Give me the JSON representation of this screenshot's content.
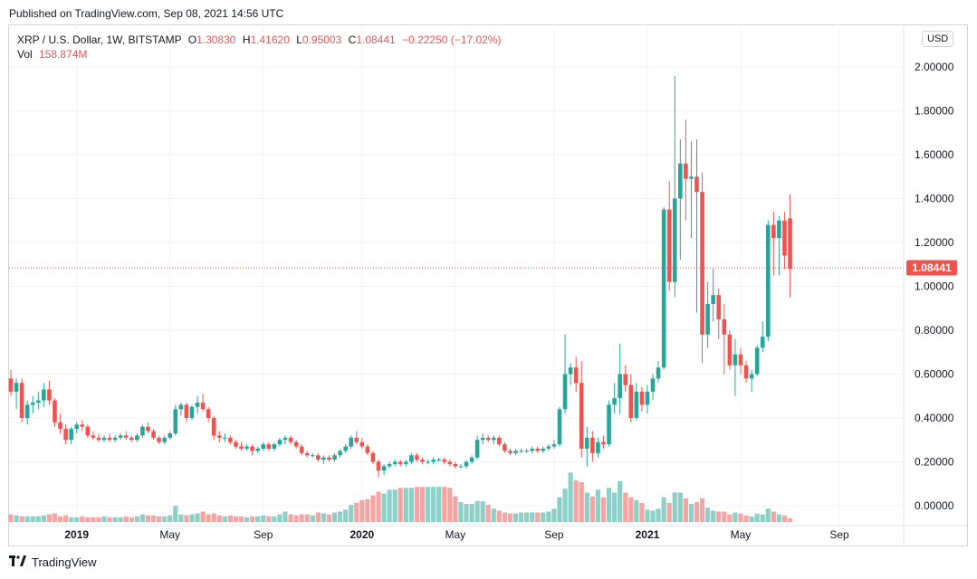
{
  "published": "Published on TradingView.com, Sep 08, 2021 14:56 UTC",
  "legend": {
    "symbol": "XRP / U.S. Dollar, 1W, BITSTAMP",
    "o_label": "O",
    "o": "1.30830",
    "h_label": "H",
    "h": "1.41620",
    "l_label": "L",
    "l": "0.95003",
    "c_label": "C",
    "c": "1.08441",
    "change": "−0.22250 (−17.02%)",
    "vol_label": "Vol",
    "vol": "158.874M"
  },
  "currency_button": "USD",
  "footer": {
    "brand": "TradingView"
  },
  "colors": {
    "up": "#26a69a",
    "down": "#ef5350",
    "vol_up": "#8ecfc7",
    "vol_down": "#f3a6a4",
    "last_price_bg": "#ef5350"
  },
  "chart_data": {
    "type": "candlestick",
    "title": "XRP / U.S. Dollar, 1W, BITSTAMP",
    "interval": "1W",
    "ylim": [
      -0.03,
      2.08
    ],
    "y_ticks": [
      "2.00000",
      "1.80000",
      "1.60000",
      "1.40000",
      "1.20000",
      "1.00000",
      "0.80000",
      "0.60000",
      "0.40000",
      "0.20000",
      "0.00000"
    ],
    "x_ticks": [
      {
        "label": "2019",
        "index": 12,
        "year": true
      },
      {
        "label": "May",
        "index": 29,
        "year": false
      },
      {
        "label": "Sep",
        "index": 46,
        "year": false
      },
      {
        "label": "2020",
        "index": 64,
        "year": true
      },
      {
        "label": "May",
        "index": 81,
        "year": false
      },
      {
        "label": "Sep",
        "index": 99,
        "year": false
      },
      {
        "label": "2021",
        "index": 116,
        "year": true
      },
      {
        "label": "May",
        "index": 133,
        "year": false
      },
      {
        "label": "Sep",
        "index": 151,
        "year": false
      }
    ],
    "last_price": "1.08441",
    "last_price_value": 1.08441,
    "volume_scale_max": 1.0,
    "ohlc": [
      [
        0.58,
        0.62,
        0.5,
        0.52
      ],
      [
        0.52,
        0.58,
        0.44,
        0.56
      ],
      [
        0.56,
        0.58,
        0.38,
        0.4
      ],
      [
        0.4,
        0.48,
        0.37,
        0.46
      ],
      [
        0.46,
        0.5,
        0.42,
        0.47
      ],
      [
        0.47,
        0.52,
        0.44,
        0.48
      ],
      [
        0.48,
        0.56,
        0.45,
        0.53
      ],
      [
        0.53,
        0.57,
        0.46,
        0.48
      ],
      [
        0.48,
        0.49,
        0.36,
        0.38
      ],
      [
        0.38,
        0.42,
        0.33,
        0.35
      ],
      [
        0.35,
        0.37,
        0.28,
        0.3
      ],
      [
        0.3,
        0.36,
        0.28,
        0.35
      ],
      [
        0.35,
        0.38,
        0.33,
        0.37
      ],
      [
        0.37,
        0.39,
        0.34,
        0.36
      ],
      [
        0.36,
        0.37,
        0.31,
        0.32
      ],
      [
        0.32,
        0.34,
        0.3,
        0.31
      ],
      [
        0.31,
        0.33,
        0.29,
        0.3
      ],
      [
        0.3,
        0.32,
        0.29,
        0.31
      ],
      [
        0.31,
        0.33,
        0.29,
        0.3
      ],
      [
        0.3,
        0.32,
        0.29,
        0.31
      ],
      [
        0.31,
        0.33,
        0.3,
        0.32
      ],
      [
        0.32,
        0.34,
        0.3,
        0.31
      ],
      [
        0.31,
        0.32,
        0.29,
        0.3
      ],
      [
        0.3,
        0.33,
        0.29,
        0.32
      ],
      [
        0.32,
        0.37,
        0.31,
        0.36
      ],
      [
        0.36,
        0.38,
        0.33,
        0.34
      ],
      [
        0.34,
        0.35,
        0.3,
        0.31
      ],
      [
        0.31,
        0.32,
        0.28,
        0.29
      ],
      [
        0.29,
        0.32,
        0.28,
        0.31
      ],
      [
        0.31,
        0.34,
        0.3,
        0.33
      ],
      [
        0.33,
        0.46,
        0.32,
        0.44
      ],
      [
        0.44,
        0.47,
        0.41,
        0.46
      ],
      [
        0.46,
        0.47,
        0.38,
        0.4
      ],
      [
        0.4,
        0.46,
        0.39,
        0.45
      ],
      [
        0.45,
        0.5,
        0.42,
        0.47
      ],
      [
        0.47,
        0.51,
        0.43,
        0.44
      ],
      [
        0.44,
        0.45,
        0.38,
        0.4
      ],
      [
        0.4,
        0.41,
        0.3,
        0.32
      ],
      [
        0.32,
        0.34,
        0.29,
        0.31
      ],
      [
        0.31,
        0.33,
        0.29,
        0.31
      ],
      [
        0.31,
        0.32,
        0.28,
        0.29
      ],
      [
        0.29,
        0.3,
        0.26,
        0.27
      ],
      [
        0.27,
        0.29,
        0.25,
        0.26
      ],
      [
        0.26,
        0.28,
        0.25,
        0.27
      ],
      [
        0.27,
        0.28,
        0.23,
        0.25
      ],
      [
        0.25,
        0.27,
        0.24,
        0.26
      ],
      [
        0.26,
        0.29,
        0.25,
        0.28
      ],
      [
        0.28,
        0.29,
        0.25,
        0.26
      ],
      [
        0.26,
        0.29,
        0.25,
        0.28
      ],
      [
        0.28,
        0.31,
        0.27,
        0.3
      ],
      [
        0.3,
        0.32,
        0.28,
        0.31
      ],
      [
        0.31,
        0.32,
        0.28,
        0.29
      ],
      [
        0.29,
        0.3,
        0.26,
        0.27
      ],
      [
        0.27,
        0.28,
        0.23,
        0.24
      ],
      [
        0.24,
        0.25,
        0.22,
        0.23
      ],
      [
        0.23,
        0.24,
        0.22,
        0.23
      ],
      [
        0.23,
        0.24,
        0.2,
        0.21
      ],
      [
        0.21,
        0.23,
        0.19,
        0.22
      ],
      [
        0.22,
        0.23,
        0.2,
        0.21
      ],
      [
        0.21,
        0.24,
        0.2,
        0.23
      ],
      [
        0.23,
        0.26,
        0.22,
        0.25
      ],
      [
        0.25,
        0.28,
        0.24,
        0.27
      ],
      [
        0.27,
        0.32,
        0.26,
        0.31
      ],
      [
        0.31,
        0.34,
        0.28,
        0.29
      ],
      [
        0.29,
        0.31,
        0.26,
        0.27
      ],
      [
        0.27,
        0.28,
        0.23,
        0.24
      ],
      [
        0.24,
        0.25,
        0.19,
        0.2
      ],
      [
        0.2,
        0.21,
        0.13,
        0.16
      ],
      [
        0.16,
        0.19,
        0.14,
        0.18
      ],
      [
        0.18,
        0.2,
        0.17,
        0.19
      ],
      [
        0.19,
        0.21,
        0.18,
        0.2
      ],
      [
        0.2,
        0.21,
        0.18,
        0.19
      ],
      [
        0.19,
        0.21,
        0.18,
        0.2
      ],
      [
        0.2,
        0.24,
        0.19,
        0.23
      ],
      [
        0.23,
        0.24,
        0.2,
        0.21
      ],
      [
        0.21,
        0.22,
        0.19,
        0.2
      ],
      [
        0.2,
        0.21,
        0.19,
        0.2
      ],
      [
        0.2,
        0.22,
        0.19,
        0.21
      ],
      [
        0.21,
        0.22,
        0.2,
        0.21
      ],
      [
        0.21,
        0.22,
        0.19,
        0.2
      ],
      [
        0.2,
        0.21,
        0.18,
        0.19
      ],
      [
        0.19,
        0.2,
        0.17,
        0.18
      ],
      [
        0.18,
        0.19,
        0.17,
        0.18
      ],
      [
        0.18,
        0.21,
        0.17,
        0.2
      ],
      [
        0.2,
        0.23,
        0.19,
        0.22
      ],
      [
        0.22,
        0.32,
        0.21,
        0.3
      ],
      [
        0.3,
        0.33,
        0.28,
        0.31
      ],
      [
        0.31,
        0.32,
        0.29,
        0.3
      ],
      [
        0.3,
        0.32,
        0.28,
        0.31
      ],
      [
        0.31,
        0.32,
        0.27,
        0.28
      ],
      [
        0.28,
        0.29,
        0.24,
        0.25
      ],
      [
        0.25,
        0.26,
        0.23,
        0.24
      ],
      [
        0.24,
        0.26,
        0.23,
        0.25
      ],
      [
        0.25,
        0.26,
        0.24,
        0.25
      ],
      [
        0.25,
        0.26,
        0.24,
        0.25
      ],
      [
        0.25,
        0.27,
        0.24,
        0.26
      ],
      [
        0.26,
        0.27,
        0.24,
        0.25
      ],
      [
        0.25,
        0.27,
        0.24,
        0.26
      ],
      [
        0.26,
        0.28,
        0.25,
        0.27
      ],
      [
        0.27,
        0.3,
        0.26,
        0.28
      ],
      [
        0.28,
        0.45,
        0.27,
        0.44
      ],
      [
        0.44,
        0.78,
        0.42,
        0.6
      ],
      [
        0.6,
        0.65,
        0.55,
        0.63
      ],
      [
        0.63,
        0.68,
        0.52,
        0.56
      ],
      [
        0.56,
        0.66,
        0.22,
        0.26
      ],
      [
        0.26,
        0.36,
        0.18,
        0.31
      ],
      [
        0.31,
        0.34,
        0.2,
        0.24
      ],
      [
        0.24,
        0.31,
        0.22,
        0.29
      ],
      [
        0.29,
        0.32,
        0.26,
        0.28
      ],
      [
        0.28,
        0.48,
        0.27,
        0.46
      ],
      [
        0.46,
        0.56,
        0.42,
        0.49
      ],
      [
        0.49,
        0.74,
        0.42,
        0.6
      ],
      [
        0.6,
        0.64,
        0.52,
        0.55
      ],
      [
        0.55,
        0.6,
        0.38,
        0.4
      ],
      [
        0.4,
        0.56,
        0.39,
        0.52
      ],
      [
        0.52,
        0.54,
        0.43,
        0.46
      ],
      [
        0.46,
        0.55,
        0.42,
        0.52
      ],
      [
        0.52,
        0.6,
        0.48,
        0.58
      ],
      [
        0.58,
        0.66,
        0.56,
        0.63
      ],
      [
        0.63,
        1.36,
        0.62,
        1.35
      ],
      [
        1.35,
        1.48,
        0.98,
        1.02
      ],
      [
        1.02,
        1.96,
        0.95,
        1.4
      ],
      [
        1.4,
        1.67,
        1.12,
        1.56
      ],
      [
        1.56,
        1.76,
        1.3,
        1.49
      ],
      [
        1.49,
        1.66,
        1.22,
        1.5
      ],
      [
        1.5,
        1.67,
        0.88,
        1.43
      ],
      [
        1.43,
        1.52,
        0.65,
        0.78
      ],
      [
        0.78,
        1.02,
        0.72,
        0.92
      ],
      [
        0.92,
        1.08,
        0.84,
        0.96
      ],
      [
        0.96,
        0.99,
        0.76,
        0.85
      ],
      [
        0.85,
        0.92,
        0.6,
        0.78
      ],
      [
        0.78,
        0.8,
        0.62,
        0.64
      ],
      [
        0.64,
        0.76,
        0.5,
        0.69
      ],
      [
        0.69,
        0.72,
        0.6,
        0.64
      ],
      [
        0.64,
        0.66,
        0.56,
        0.58
      ],
      [
        0.58,
        0.62,
        0.52,
        0.6
      ],
      [
        0.6,
        0.73,
        0.59,
        0.72
      ],
      [
        0.72,
        0.84,
        0.7,
        0.77
      ],
      [
        0.77,
        1.3,
        0.75,
        1.28
      ],
      [
        1.28,
        1.34,
        1.05,
        1.22
      ],
      [
        1.22,
        1.32,
        1.05,
        1.3
      ],
      [
        1.3,
        1.34,
        1.08,
        1.14
      ],
      [
        1.31,
        1.42,
        0.95,
        1.08
      ]
    ],
    "volume": [
      0.08,
      0.07,
      0.06,
      0.06,
      0.06,
      0.06,
      0.07,
      0.08,
      0.09,
      0.06,
      0.07,
      0.05,
      0.05,
      0.06,
      0.05,
      0.05,
      0.05,
      0.06,
      0.05,
      0.05,
      0.05,
      0.06,
      0.05,
      0.06,
      0.08,
      0.07,
      0.07,
      0.06,
      0.06,
      0.07,
      0.17,
      0.08,
      0.07,
      0.08,
      0.09,
      0.11,
      0.08,
      0.09,
      0.07,
      0.06,
      0.07,
      0.06,
      0.06,
      0.05,
      0.06,
      0.06,
      0.07,
      0.06,
      0.06,
      0.08,
      0.11,
      0.08,
      0.07,
      0.08,
      0.08,
      0.07,
      0.1,
      0.09,
      0.08,
      0.1,
      0.11,
      0.13,
      0.18,
      0.2,
      0.23,
      0.24,
      0.28,
      0.32,
      0.3,
      0.34,
      0.34,
      0.36,
      0.36,
      0.36,
      0.37,
      0.37,
      0.37,
      0.37,
      0.37,
      0.37,
      0.36,
      0.27,
      0.21,
      0.19,
      0.19,
      0.22,
      0.22,
      0.18,
      0.14,
      0.12,
      0.1,
      0.09,
      0.09,
      0.1,
      0.1,
      0.1,
      0.1,
      0.1,
      0.11,
      0.14,
      0.26,
      0.35,
      0.52,
      0.44,
      0.42,
      0.31,
      0.27,
      0.34,
      0.26,
      0.36,
      0.31,
      0.43,
      0.31,
      0.26,
      0.23,
      0.2,
      0.13,
      0.12,
      0.14,
      0.26,
      0.2,
      0.31,
      0.31,
      0.25,
      0.19,
      0.21,
      0.25,
      0.15,
      0.12,
      0.11,
      0.11,
      0.08,
      0.1,
      0.09,
      0.07,
      0.06,
      0.09,
      0.08,
      0.14,
      0.11,
      0.08,
      0.07,
      0.04
    ]
  }
}
